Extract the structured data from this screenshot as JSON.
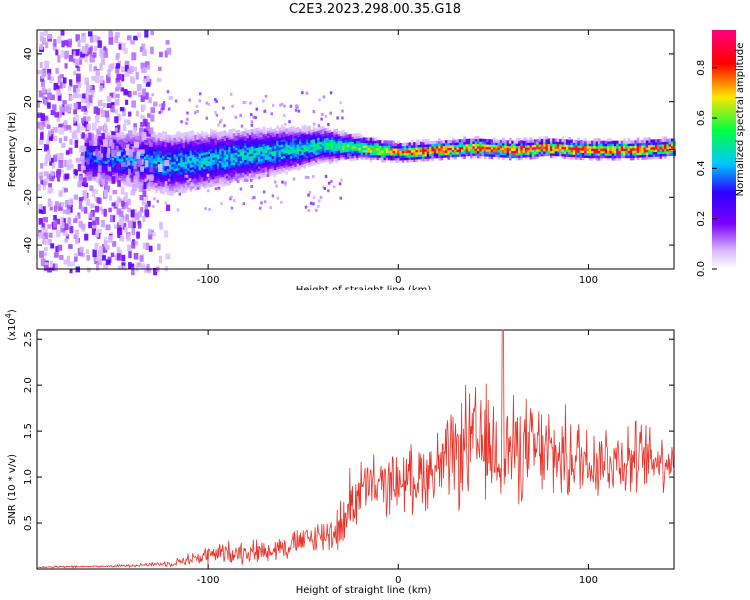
{
  "title": "C2E3.2023.298.00.35.G18",
  "colors": {
    "snr_line": "#e8332a",
    "spectrogram_background": "#ffffff",
    "colormap": [
      "#ffffff",
      "#d6b4ff",
      "#7a00ff",
      "#2c00ff",
      "#00c8ff",
      "#00ff40",
      "#ffe600",
      "#ff0000",
      "#ff0080"
    ]
  },
  "chart_data": [
    {
      "type": "heatmap",
      "xlabel": "Height of straight line (km)",
      "ylabel": "Frequency (Hz)",
      "xlim": [
        -190,
        145
      ],
      "ylim": [
        -50,
        50
      ],
      "x_ticks": [
        -100,
        0,
        100
      ],
      "x_tick_labels": [
        "-100",
        "0",
        "100"
      ],
      "y_ticks": [
        -40,
        -20,
        0,
        20,
        40
      ],
      "y_tick_labels": [
        "-40",
        "-20",
        "0",
        "20",
        "40"
      ],
      "colorbar": {
        "label": "Normalized spectral amplitude",
        "range": [
          0.0,
          0.95
        ],
        "ticks": [
          0.0,
          0.2,
          0.4,
          0.6,
          0.8
        ],
        "tick_labels": [
          "0.0",
          "0.2",
          "0.4",
          "0.6",
          "0.8"
        ]
      },
      "ridge": {
        "x": [
          -160,
          -140,
          -120,
          -100,
          -80,
          -60,
          -40,
          -20,
          0,
          20,
          40,
          60,
          80,
          100,
          120,
          145
        ],
        "center_hz": [
          -3,
          -4,
          -6,
          -4,
          -2,
          0,
          2,
          1,
          -1,
          0,
          1,
          0,
          1,
          0,
          0,
          1
        ],
        "half_width_hz": [
          9,
          10,
          11,
          10,
          9,
          8,
          6,
          4,
          3,
          3,
          3,
          3,
          3,
          3,
          3,
          3
        ],
        "peak_amplitude": [
          0.35,
          0.4,
          0.4,
          0.42,
          0.45,
          0.45,
          0.5,
          0.6,
          0.8,
          0.85,
          0.85,
          0.85,
          0.85,
          0.85,
          0.85,
          0.85
        ]
      },
      "noise_region_x": [
        -190,
        -150
      ]
    },
    {
      "type": "line",
      "xlabel": "Height of straight line (km)",
      "ylabel": "SNR (10 * v/v)",
      "y_multiplier_label": "(x10",
      "y_multiplier_exponent": "4",
      "xlim": [
        -190,
        145
      ],
      "ylim": [
        0,
        2.6
      ],
      "x_ticks": [
        -100,
        0,
        100
      ],
      "x_tick_labels": [
        "-100",
        "0",
        "100"
      ],
      "y_ticks": [
        0.5,
        1.0,
        1.5,
        2.0,
        2.5
      ],
      "y_tick_labels": [
        "0.5",
        "1.0",
        "1.5",
        "2.0",
        "2.5"
      ],
      "envelope": {
        "x": [
          -190,
          -150,
          -120,
          -100,
          -90,
          -70,
          -50,
          -35,
          -28,
          -25,
          -20,
          -10,
          0,
          10,
          20,
          30,
          35,
          40,
          50,
          60,
          70,
          80,
          90,
          100,
          110,
          120,
          130,
          145
        ],
        "mean": [
          0.02,
          0.03,
          0.06,
          0.15,
          0.18,
          0.2,
          0.3,
          0.4,
          0.5,
          0.75,
          0.85,
          0.9,
          0.95,
          1.0,
          1.1,
          1.2,
          1.35,
          1.35,
          1.3,
          1.3,
          1.3,
          1.25,
          1.2,
          1.2,
          1.2,
          1.2,
          1.2,
          1.2
        ],
        "spread": [
          0.01,
          0.01,
          0.03,
          0.1,
          0.12,
          0.12,
          0.15,
          0.2,
          0.3,
          0.35,
          0.35,
          0.3,
          0.3,
          0.35,
          0.4,
          0.5,
          0.6,
          0.6,
          0.6,
          0.55,
          0.5,
          0.5,
          0.45,
          0.45,
          0.4,
          0.4,
          0.35,
          0.3
        ]
      },
      "peak_value": 2.6,
      "peak_x": 55
    }
  ]
}
